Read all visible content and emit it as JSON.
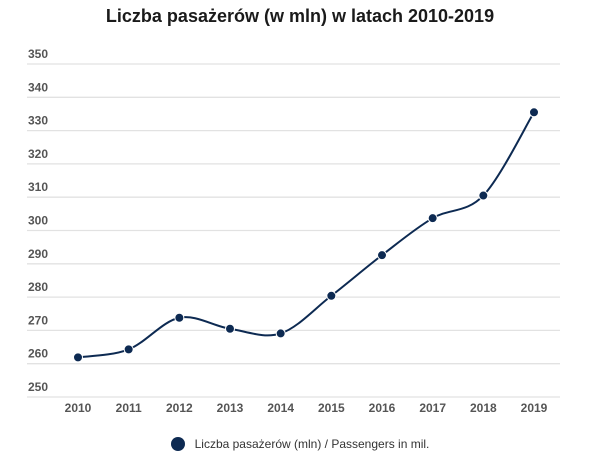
{
  "chart_data": {
    "type": "line",
    "title": "Liczba pasażerów (w mln) w latach 2010-2019",
    "categories": [
      "2010",
      "2011",
      "2012",
      "2013",
      "2014",
      "2015",
      "2016",
      "2017",
      "2018",
      "2019"
    ],
    "series": [
      {
        "name": "Liczba pasażerów (mln) / Passengers in mil.",
        "values": [
          261.9,
          264.3,
          273.8,
          270.5,
          269.1,
          280.4,
          292.6,
          303.7,
          310.5,
          335.5
        ],
        "color": "#0d2a52"
      }
    ],
    "yticks": [
      250,
      260,
      270,
      280,
      290,
      300,
      310,
      320,
      330,
      340,
      350
    ],
    "ylim": [
      250,
      350
    ],
    "grid": true,
    "legend": "bottom"
  }
}
